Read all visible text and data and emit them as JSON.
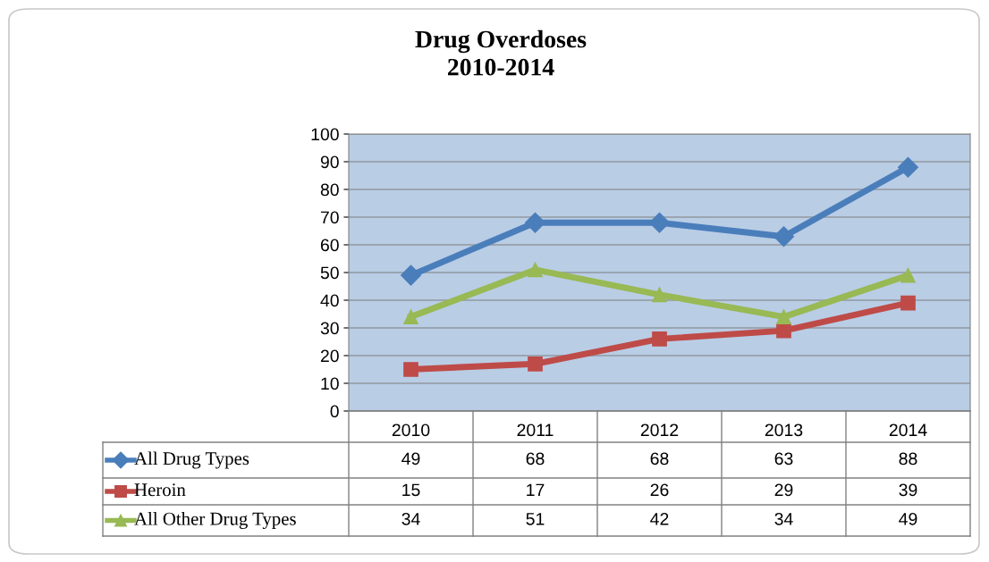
{
  "chart_data": {
    "type": "line",
    "title": "Drug Overdoses\n2010-2014",
    "categories": [
      "2010",
      "2011",
      "2012",
      "2013",
      "2014"
    ],
    "series": [
      {
        "name": "All Drug Types",
        "color": "#4a7ebb",
        "marker": "diamond",
        "values": [
          49,
          68,
          68,
          63,
          88
        ]
      },
      {
        "name": "Heroin",
        "color": "#be4b48",
        "marker": "square",
        "values": [
          15,
          17,
          26,
          29,
          39
        ]
      },
      {
        "name": "All Other Drug Types",
        "color": "#98b954",
        "marker": "triangle",
        "values": [
          34,
          51,
          42,
          34,
          49
        ]
      }
    ],
    "ylim": [
      0,
      100
    ],
    "yticks": [
      0,
      10,
      20,
      30,
      40,
      50,
      60,
      70,
      80,
      90,
      100
    ],
    "grid": "y",
    "data_labels": true,
    "legend": "bottom"
  }
}
